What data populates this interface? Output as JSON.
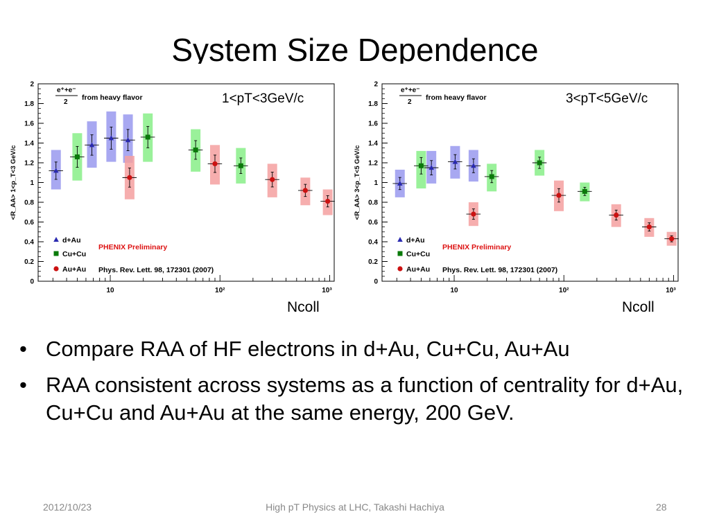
{
  "slide": {
    "title": "System Size Dependence",
    "bullets": [
      "Compare RAA of HF electrons in d+Au, Cu+Cu, Au+Au",
      "RAA consistent across systems as a function of centrality for d+Au, Cu+Cu and Au+Au at the same energy, 200 GeV."
    ],
    "bullet_glyph": "•",
    "footer": {
      "date": "2012/10/23",
      "center": "High pT Physics at LHC, Takashi Hachiya",
      "page": "28"
    }
  },
  "colors": {
    "d_Au": "#2a2ab0",
    "Cu_Cu": "#0a7a0a",
    "Au_Au": "#cc1111",
    "d_Au_band": "#9999ee",
    "Cu_Cu_band": "#88ee88",
    "Au_Au_band": "#f4a0a0",
    "phenix_red": "#dd1111"
  },
  "chart_data": [
    {
      "type": "scatter",
      "range_label": "1<pT<3GeV/c",
      "xlabel": "Ncoll",
      "ylabel": "<R_AA> 1<p_T<3 GeV/c",
      "xscale": "log",
      "xlim": [
        2.2,
        1100
      ],
      "ylim": [
        0,
        2
      ],
      "yticks": [
        "0",
        "0.2",
        "0.4",
        "0.6",
        "0.8",
        "1",
        "1.2",
        "1.4",
        "1.6",
        "1.8",
        "2"
      ],
      "xticks": [
        "10",
        "10²",
        "10³"
      ],
      "legend_title": "e⁺+e⁻/2 from heavy flavor",
      "legend": [
        "d+Au",
        "Cu+Cu",
        "Au+Au"
      ],
      "annotations": [
        "PHENIX Preliminary",
        "Phys. Rev. Lett. 98, 172301 (2007)"
      ],
      "series": [
        {
          "name": "d+Au",
          "x": [
            3.2,
            6.8,
            10.2,
            14.5
          ],
          "y": [
            1.12,
            1.38,
            1.45,
            1.43
          ],
          "band_lo": [
            0.93,
            1.15,
            1.21,
            1.2
          ],
          "band_hi": [
            1.33,
            1.62,
            1.72,
            1.69
          ]
        },
        {
          "name": "Cu+Cu",
          "x": [
            5,
            22,
            60,
            155
          ],
          "y": [
            1.26,
            1.46,
            1.33,
            1.17
          ],
          "band_lo": [
            1.02,
            1.21,
            1.11,
            0.99
          ],
          "band_hi": [
            1.5,
            1.7,
            1.54,
            1.35
          ]
        },
        {
          "name": "Au+Au",
          "x": [
            15,
            90,
            300,
            600,
            960
          ],
          "y": [
            1.05,
            1.19,
            1.03,
            0.92,
            0.81
          ],
          "band_lo": [
            0.83,
            0.98,
            0.85,
            0.77,
            0.67
          ],
          "band_hi": [
            1.27,
            1.38,
            1.19,
            1.05,
            0.93
          ]
        }
      ]
    },
    {
      "type": "scatter",
      "range_label": "3<pT<5GeV/c",
      "xlabel": "Ncoll",
      "ylabel": "<R_AA> 3<p_T<5 GeV/c",
      "xscale": "log",
      "xlim": [
        2.2,
        1100
      ],
      "ylim": [
        0,
        2
      ],
      "yticks": [
        "0",
        "0.2",
        "0.4",
        "0.6",
        "0.8",
        "1",
        "1.2",
        "1.4",
        "1.6",
        "1.8",
        "2"
      ],
      "xticks": [
        "10",
        "10²",
        "10³"
      ],
      "legend_title": "e⁺+e⁻/2 from heavy flavor",
      "legend": [
        "d+Au",
        "Cu+Cu",
        "Au+Au"
      ],
      "annotations": [
        "PHENIX Preliminary",
        "Phys. Rev. Lett. 98, 172301 (2007)"
      ],
      "series": [
        {
          "name": "d+Au",
          "x": [
            3.2,
            6.2,
            10.2,
            15
          ],
          "y": [
            0.99,
            1.15,
            1.21,
            1.17
          ],
          "band_lo": [
            0.85,
            0.99,
            1.04,
            1.01
          ],
          "band_hi": [
            1.13,
            1.32,
            1.37,
            1.33
          ]
        },
        {
          "name": "Cu+Cu",
          "x": [
            5,
            22,
            60,
            155
          ],
          "y": [
            1.17,
            1.06,
            1.2,
            0.91
          ],
          "band_lo": [
            0.94,
            0.91,
            1.07,
            0.81
          ],
          "band_hi": [
            1.32,
            1.19,
            1.33,
            1.0
          ]
        },
        {
          "name": "Au+Au",
          "x": [
            15,
            90,
            300,
            600,
            960
          ],
          "y": [
            0.68,
            0.87,
            0.67,
            0.55,
            0.43
          ],
          "band_lo": [
            0.56,
            0.71,
            0.55,
            0.45,
            0.36
          ],
          "band_hi": [
            0.8,
            1.02,
            0.78,
            0.64,
            0.5
          ]
        }
      ]
    }
  ]
}
